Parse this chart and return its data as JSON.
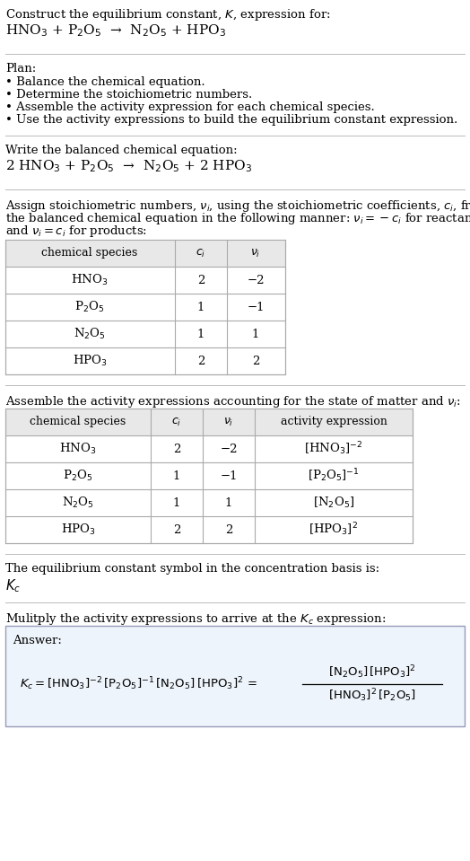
{
  "title_line1": "Construct the equilibrium constant, $K$, expression for:",
  "title_line2": "HNO$_3$ + P$_2$O$_5$  →  N$_2$O$_5$ + HPO$_3$",
  "plan_header": "Plan:",
  "plan_items": [
    "• Balance the chemical equation.",
    "• Determine the stoichiometric numbers.",
    "• Assemble the activity expression for each chemical species.",
    "• Use the activity expressions to build the equilibrium constant expression."
  ],
  "balanced_header": "Write the balanced chemical equation:",
  "balanced_eq": "2 HNO$_3$ + P$_2$O$_5$  →  N$_2$O$_5$ + 2 HPO$_3$",
  "stoich_intro_lines": [
    "Assign stoichiometric numbers, $\\nu_i$, using the stoichiometric coefficients, $c_i$, from",
    "the balanced chemical equation in the following manner: $\\nu_i = -c_i$ for reactants",
    "and $\\nu_i = c_i$ for products:"
  ],
  "table1_headers": [
    "chemical species",
    "$c_i$",
    "$\\nu_i$"
  ],
  "table1_rows": [
    [
      "HNO$_3$",
      "2",
      "−2"
    ],
    [
      "P$_2$O$_5$",
      "1",
      "−1"
    ],
    [
      "N$_2$O$_5$",
      "1",
      "1"
    ],
    [
      "HPO$_3$",
      "2",
      "2"
    ]
  ],
  "assemble_intro": "Assemble the activity expressions accounting for the state of matter and $\\nu_i$:",
  "table2_headers": [
    "chemical species",
    "$c_i$",
    "$\\nu_i$",
    "activity expression"
  ],
  "table2_rows": [
    [
      "HNO$_3$",
      "2",
      "−2",
      "[HNO$_3$]$^{-2}$"
    ],
    [
      "P$_2$O$_5$",
      "1",
      "−1",
      "[P$_2$O$_5$]$^{-1}$"
    ],
    [
      "N$_2$O$_5$",
      "1",
      "1",
      "[N$_2$O$_5$]"
    ],
    [
      "HPO$_3$",
      "2",
      "2",
      "[HPO$_3$]$^2$"
    ]
  ],
  "kc_intro": "The equilibrium constant symbol in the concentration basis is:",
  "kc_symbol": "$K_c$",
  "multiply_intro": "Mulitply the activity expressions to arrive at the $K_c$ expression:",
  "answer_label": "Answer:",
  "bg_color": "#ffffff",
  "separator_color": "#bbbbbb",
  "table_line_color": "#aaaaaa",
  "table_header_bg": "#e8e8e8",
  "answer_box_bg": "#eef4fb",
  "answer_box_border": "#9999bb",
  "font_size": 9.5
}
